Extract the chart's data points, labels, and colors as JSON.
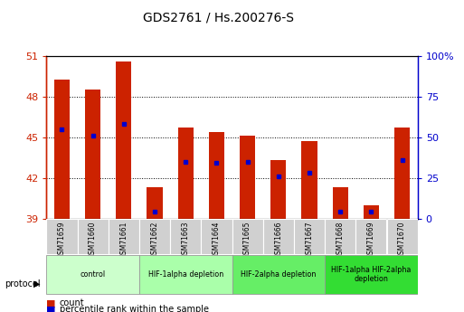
{
  "title": "GDS2761 / Hs.200276-S",
  "samples": [
    "GSM71659",
    "GSM71660",
    "GSM71661",
    "GSM71662",
    "GSM71663",
    "GSM71664",
    "GSM71665",
    "GSM71666",
    "GSM71667",
    "GSM71668",
    "GSM71669",
    "GSM71670"
  ],
  "bar_bottoms": [
    39,
    39,
    39,
    39,
    39,
    39,
    39,
    39,
    39,
    39,
    39,
    39
  ],
  "bar_tops": [
    49.3,
    48.5,
    50.6,
    41.3,
    45.7,
    45.4,
    45.1,
    43.3,
    44.7,
    41.3,
    40.0,
    45.7
  ],
  "percentile_values": [
    45.6,
    45.1,
    46.0,
    39.5,
    43.2,
    43.1,
    43.2,
    42.1,
    42.4,
    39.5,
    39.5,
    43.3
  ],
  "y_min": 39,
  "y_max": 51,
  "y_ticks": [
    39,
    42,
    45,
    48,
    51
  ],
  "y2_ticks": [
    0,
    25,
    50,
    75,
    100
  ],
  "bar_color": "#cc2200",
  "percentile_color": "#0000cc",
  "label_color_left": "#cc2200",
  "label_color_right": "#0000cc",
  "groups": [
    {
      "label": "control",
      "start": 0,
      "end": 3,
      "color": "#ccffcc"
    },
    {
      "label": "HIF-1alpha depletion",
      "start": 3,
      "end": 6,
      "color": "#aaffaa"
    },
    {
      "label": "HIF-2alpha depletion",
      "start": 6,
      "end": 9,
      "color": "#66ee66"
    },
    {
      "label": "HIF-1alpha HIF-2alpha\ndepletion",
      "start": 9,
      "end": 12,
      "color": "#33dd33"
    }
  ],
  "protocol_label": "protocol",
  "legend_count": "count",
  "legend_percentile": "percentile rank within the sample",
  "bar_width": 0.5,
  "tick_label_bg": "#d0d0d0"
}
